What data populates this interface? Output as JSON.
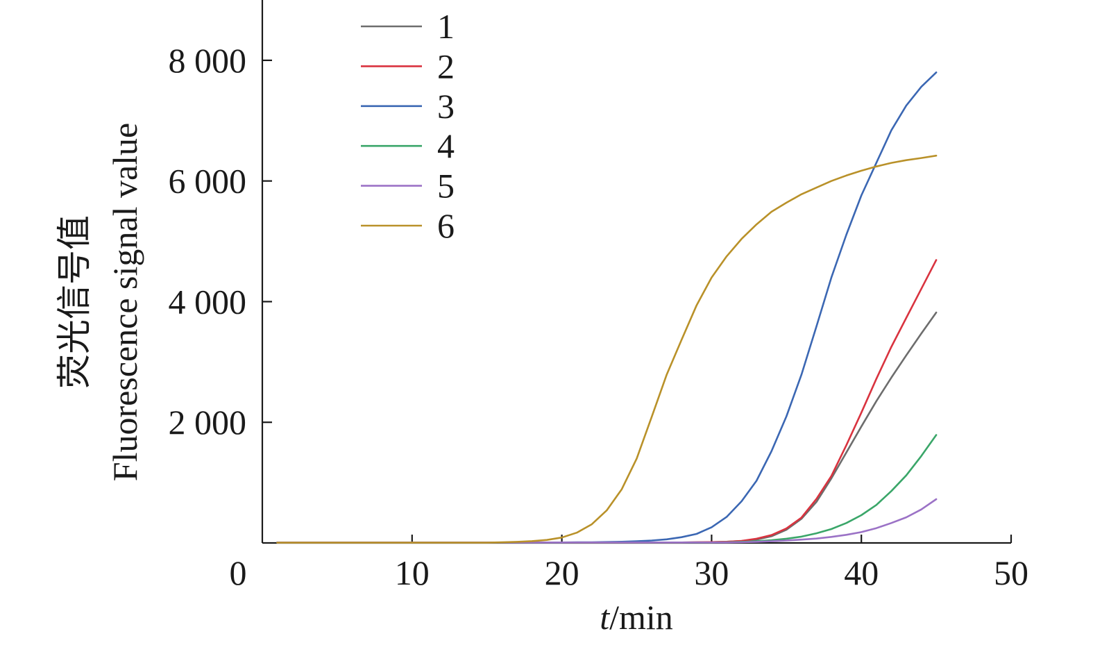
{
  "chart_data": {
    "type": "line",
    "xlabel": {
      "variable": "t",
      "unit": "/min"
    },
    "ylabel": [
      "荧光信号值",
      "Fluorescence signal value"
    ],
    "xlim": [
      0,
      50
    ],
    "ylim": [
      0,
      9000
    ],
    "xticks": [
      0,
      10,
      20,
      30,
      40,
      50
    ],
    "xtick_labels": [
      "0",
      "10",
      "20",
      "30",
      "40",
      "50"
    ],
    "yticks": [
      2000,
      4000,
      6000,
      8000
    ],
    "ytick_labels": [
      "2 000",
      "4 000",
      "6 000",
      "8 000"
    ],
    "grid": false,
    "legend_position": "top-left",
    "x": [
      1,
      2,
      3,
      4,
      5,
      6,
      7,
      8,
      9,
      10,
      11,
      12,
      13,
      14,
      15,
      16,
      17,
      18,
      19,
      20,
      21,
      22,
      23,
      24,
      25,
      26,
      27,
      28,
      29,
      30,
      31,
      32,
      33,
      34,
      35,
      36,
      37,
      38,
      39,
      40,
      41,
      42,
      43,
      44,
      45
    ],
    "series": [
      {
        "name": "1",
        "color": "#6d6d6d",
        "values": [
          8,
          8,
          8,
          8,
          8,
          8,
          8,
          8,
          8,
          8,
          8,
          8,
          8,
          8,
          8,
          8,
          8,
          8,
          8,
          8,
          8,
          8,
          8,
          8,
          8,
          8,
          8,
          8,
          10,
          14,
          20,
          32,
          55,
          110,
          220,
          400,
          680,
          1070,
          1500,
          1930,
          2350,
          2740,
          3110,
          3470,
          3820
        ]
      },
      {
        "name": "2",
        "color": "#d9333f",
        "values": [
          8,
          8,
          8,
          8,
          8,
          8,
          8,
          8,
          8,
          8,
          8,
          8,
          8,
          8,
          8,
          8,
          8,
          8,
          8,
          8,
          8,
          8,
          8,
          8,
          8,
          8,
          8,
          8,
          10,
          14,
          20,
          35,
          70,
          130,
          240,
          420,
          730,
          1110,
          1620,
          2160,
          2720,
          3250,
          3730,
          4210,
          4690
        ]
      },
      {
        "name": "3",
        "color": "#3b67b3",
        "values": [
          8,
          8,
          8,
          8,
          8,
          8,
          8,
          8,
          8,
          8,
          8,
          8,
          8,
          8,
          8,
          8,
          8,
          8,
          8,
          8,
          10,
          12,
          15,
          20,
          28,
          40,
          60,
          95,
          150,
          260,
          430,
          690,
          1030,
          1520,
          2100,
          2790,
          3590,
          4400,
          5110,
          5760,
          6300,
          6840,
          7250,
          7560,
          7800
        ]
      },
      {
        "name": "4",
        "color": "#3aa669",
        "values": [
          8,
          8,
          8,
          8,
          8,
          8,
          8,
          8,
          8,
          8,
          8,
          8,
          8,
          8,
          8,
          8,
          8,
          8,
          8,
          8,
          8,
          8,
          8,
          8,
          8,
          8,
          8,
          8,
          8,
          8,
          12,
          18,
          28,
          45,
          70,
          105,
          160,
          230,
          330,
          460,
          630,
          860,
          1120,
          1440,
          1790
        ]
      },
      {
        "name": "5",
        "color": "#9b72c6",
        "values": [
          8,
          8,
          8,
          8,
          8,
          8,
          8,
          8,
          8,
          8,
          8,
          8,
          8,
          8,
          8,
          8,
          8,
          8,
          8,
          8,
          8,
          8,
          8,
          8,
          8,
          8,
          8,
          8,
          8,
          8,
          8,
          12,
          18,
          28,
          40,
          55,
          72,
          100,
          135,
          180,
          245,
          330,
          425,
          555,
          725
        ]
      },
      {
        "name": "6",
        "color": "#b99129",
        "values": [
          5,
          5,
          5,
          5,
          5,
          5,
          5,
          5,
          5,
          5,
          5,
          5,
          5,
          5,
          5,
          10,
          18,
          30,
          50,
          90,
          170,
          310,
          540,
          890,
          1400,
          2090,
          2790,
          3370,
          3940,
          4400,
          4750,
          5040,
          5280,
          5490,
          5640,
          5780,
          5890,
          6000,
          6090,
          6170,
          6240,
          6300,
          6345,
          6380,
          6420
        ]
      }
    ]
  }
}
